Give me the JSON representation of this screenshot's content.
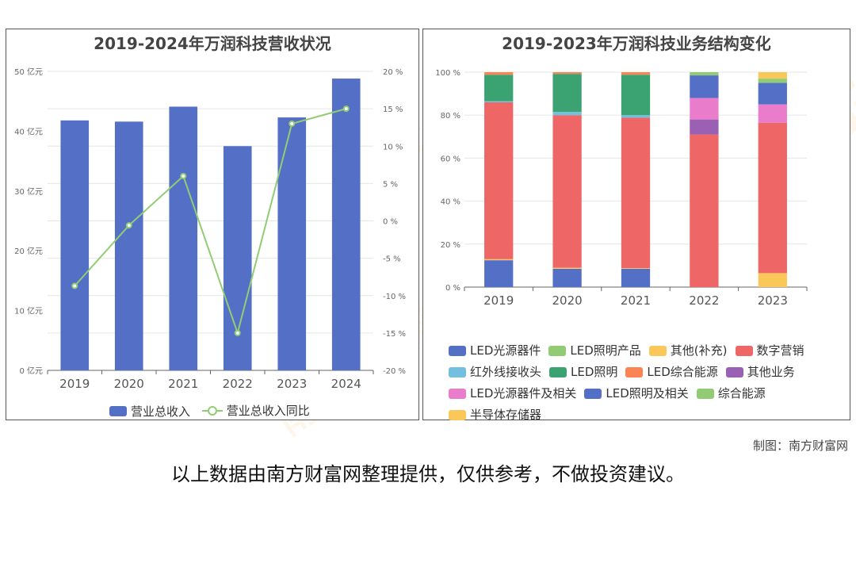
{
  "charts": {
    "left": {
      "title": "2019-2024年万润科技营收状况",
      "legend": [
        "营业总收入",
        "营业总收入同比"
      ]
    },
    "right": {
      "title": "2019-2023年万润科技业务结构变化",
      "legend": [
        "LED光源器件",
        "LED照明产品",
        "其他(补充)",
        "数字营销",
        "红外线接收头",
        "LED照明",
        "LED综合能源",
        "其他业务",
        "LED光源器件及相关",
        "LED照明及相关",
        "综合能源",
        "半导体存储器"
      ]
    }
  },
  "footer": {
    "credit": "制图：南方财富网",
    "disclaimer": "以上数据由南方财富网整理提供，仅供参考，不做投资建议。"
  },
  "watermark": {
    "cn": "南方财富网",
    "en": "southmoney.com"
  },
  "chart_data": [
    {
      "type": "bar",
      "title": "2019-2024年万润科技营收状况",
      "categories": [
        "2019",
        "2020",
        "2021",
        "2022",
        "2023",
        "2024"
      ],
      "series": [
        {
          "name": "营业总收入",
          "type": "bar",
          "axis": "left",
          "color": "#5470c6",
          "values": [
            41.8,
            41.6,
            44.1,
            37.5,
            42.3,
            48.8
          ]
        },
        {
          "name": "营业总收入同比",
          "type": "line",
          "axis": "right",
          "color": "#91cc75",
          "values": [
            -8.7,
            -0.6,
            6.0,
            -15.0,
            13.0,
            15.0
          ]
        }
      ],
      "y_left": {
        "min": 0,
        "max": 50,
        "step": 10,
        "unit": "亿元",
        "ticks": [
          "0 亿元",
          "10 亿元",
          "20 亿元",
          "30 亿元",
          "40 亿元",
          "50 亿元"
        ]
      },
      "y_right": {
        "min": -20,
        "max": 20,
        "step": 5,
        "unit": "%",
        "ticks": [
          "-20 %",
          "-15 %",
          "-10 %",
          "-5 %",
          "0 %",
          "5 %",
          "10 %",
          "15 %",
          "20 %"
        ]
      },
      "legend_position": "bottom",
      "grid": true
    },
    {
      "type": "bar",
      "stacked": true,
      "title": "2019-2023年万润科技业务结构变化",
      "categories": [
        "2019",
        "2020",
        "2021",
        "2022",
        "2023"
      ],
      "y": {
        "min": 0,
        "max": 100,
        "ticks": [
          "0 %",
          "20 %",
          "40 %",
          "60 %",
          "80 %",
          "100 %"
        ]
      },
      "legend_position": "bottom",
      "grid": true,
      "series": [
        {
          "name": "半导体存储器",
          "color": "#fac858",
          "values": [
            0,
            0,
            0,
            0,
            6.5
          ]
        },
        {
          "name": "LED光源器件",
          "color": "#5470c6",
          "values": [
            12.5,
            8.5,
            8.5,
            0,
            0
          ]
        },
        {
          "name": "LED照明产品",
          "color": "#91cc75",
          "values": [
            0,
            0,
            0,
            0,
            0
          ]
        },
        {
          "name": "其他(补充)",
          "color": "#fac858",
          "values": [
            0.5,
            0.5,
            0.3,
            0,
            0
          ]
        },
        {
          "name": "数字营销",
          "color": "#ee6666",
          "values": [
            73,
            71,
            70,
            71,
            70
          ]
        },
        {
          "name": "其他业务",
          "color": "#9a60b4",
          "values": [
            0,
            0,
            0,
            7,
            0
          ]
        },
        {
          "name": "LED光源器件及相关",
          "color": "#ea7ccc",
          "values": [
            0,
            0,
            0,
            10,
            8.5
          ]
        },
        {
          "name": "红外线接收头",
          "color": "#73c0de",
          "values": [
            0.5,
            1.5,
            1.2,
            0,
            0
          ]
        },
        {
          "name": "LED照明",
          "color": "#3ba272",
          "values": [
            12.3,
            17.7,
            18.8,
            0,
            0
          ]
        },
        {
          "name": "LED照明及相关",
          "color": "#5470c6",
          "values": [
            0,
            0,
            0,
            10.5,
            10
          ]
        },
        {
          "name": "综合能源",
          "color": "#91cc75",
          "values": [
            0,
            0,
            0,
            1.5,
            2
          ]
        },
        {
          "name": "LED综合能源",
          "color": "#fc8452",
          "values": [
            1.2,
            0.8,
            1.2,
            0,
            0
          ]
        },
        {
          "name": "其他(补充)",
          "color": "#fac858",
          "values": [
            0,
            0,
            0,
            0,
            3
          ]
        }
      ]
    }
  ]
}
